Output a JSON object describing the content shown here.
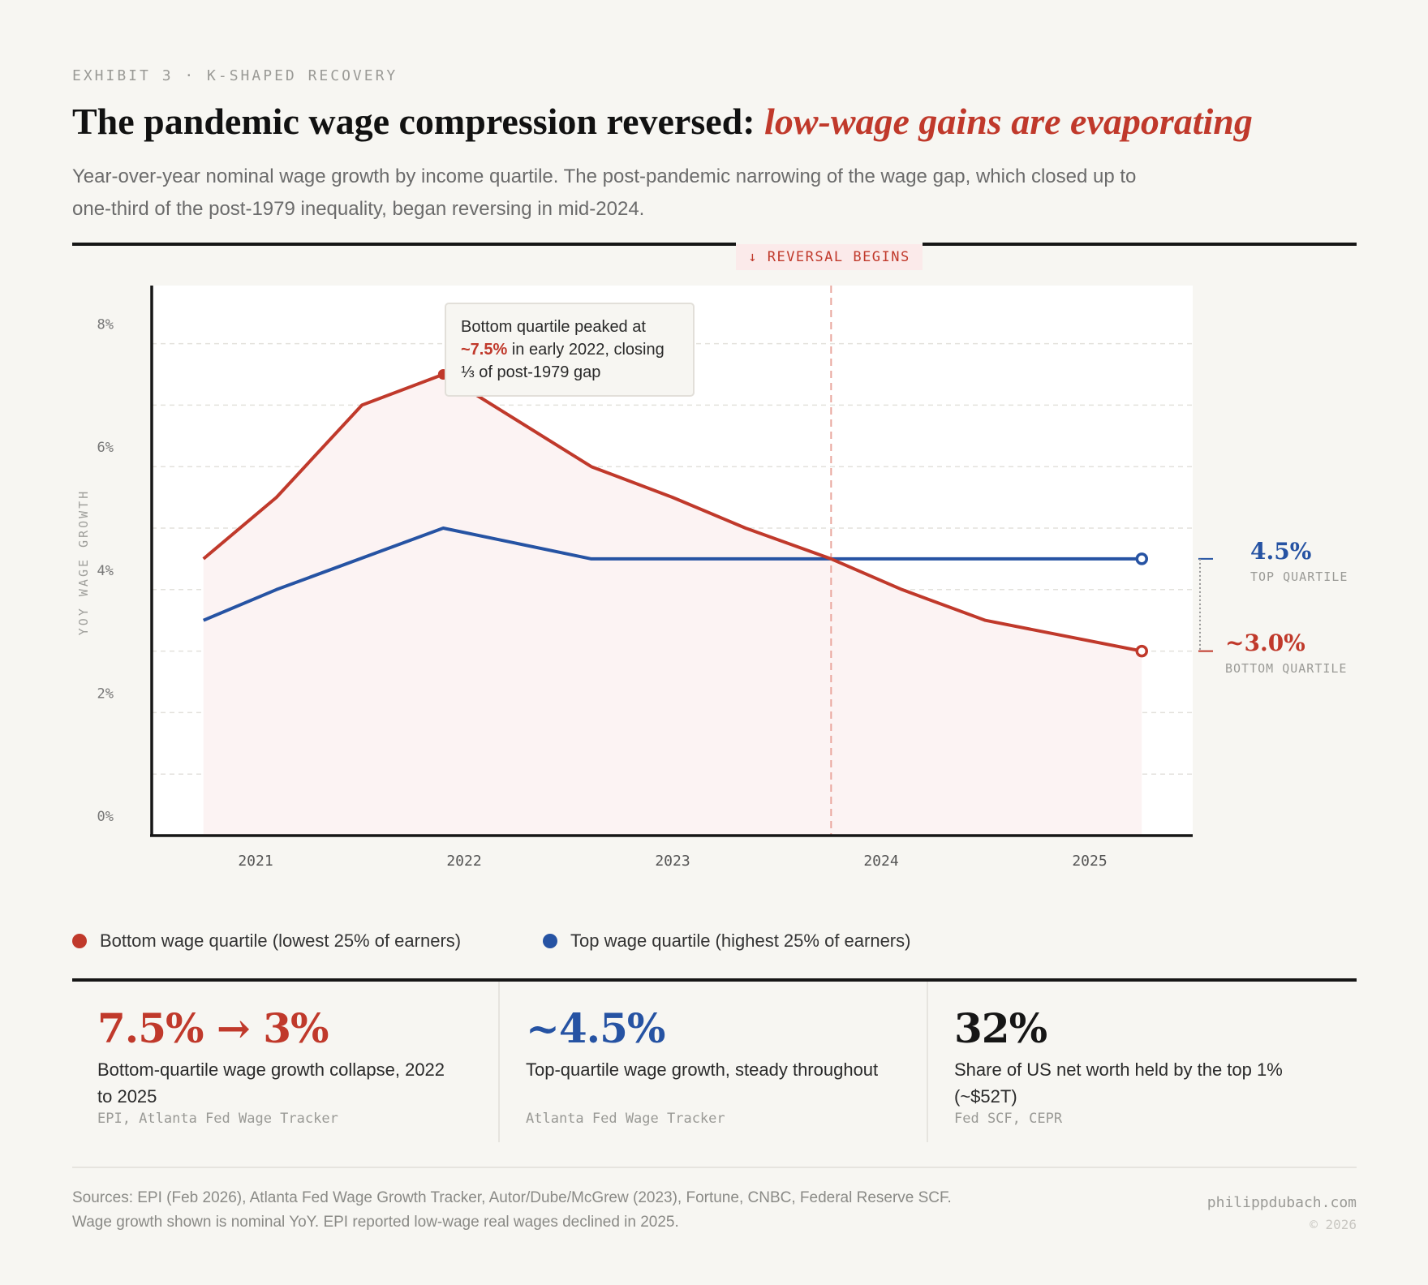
{
  "header": {
    "kicker": "EXHIBIT 3 · K-SHAPED RECOVERY",
    "title_main": "The pandemic wage compression reversed: ",
    "title_highlight": "low-wage gains are evaporating",
    "subtitle": "Year-over-year nominal wage growth by income quartile. The post-pandemic narrowing of the wage gap, which closed up to one-third of the post-1979 inequality, began reversing in mid-2024."
  },
  "chart_data": {
    "type": "line",
    "ylabel": "YOY WAGE GROWTH",
    "ylim": [
      0,
      8.9
    ],
    "xlim": [
      2020.5,
      2025.6
    ],
    "x_ticks": [
      2021,
      2022,
      2023,
      2024,
      2025
    ],
    "x_tick_labels": [
      "2021",
      "2022",
      "2023",
      "2024",
      "2025"
    ],
    "y_ticks": [
      0,
      2,
      4,
      6,
      8
    ],
    "y_tick_labels": [
      "0%",
      "2%",
      "4%",
      "6%",
      "8%"
    ],
    "grid": true,
    "legend_placement": "bottom",
    "series": [
      {
        "name": "Bottom wage quartile (lowest 25% of earners)",
        "color": "#c0392b",
        "filled": true,
        "x": [
          2020.75,
          2021.1,
          2021.51,
          2021.9,
          2022.61,
          2023.0,
          2023.35,
          2023.76,
          2024.1,
          2024.5,
          2025.25
        ],
        "y": [
          4.5,
          5.5,
          7.0,
          7.5,
          6.0,
          5.5,
          5.0,
          4.5,
          4.0,
          3.5,
          3.0
        ]
      },
      {
        "name": "Top wage quartile (highest 25% of earners)",
        "color": "#2653a3",
        "x": [
          2020.75,
          2021.1,
          2021.9,
          2022.61,
          2023.76,
          2025.25
        ],
        "y": [
          3.5,
          4.0,
          5.0,
          4.5,
          4.5,
          4.5
        ]
      }
    ],
    "annotations": {
      "reversal": {
        "x": 2023.76,
        "label": "↓ REVERSAL BEGINS"
      },
      "peak": {
        "x": 2021.9,
        "y": 7.5
      },
      "tooltip_pre": "Bottom quartile peaked at ",
      "tooltip_highlight": "~7.5%",
      "tooltip_post": " in early 2022, closing ⅓ of post-1979 gap",
      "top_end_value": "4.5%",
      "top_end_label": "TOP QUARTILE",
      "bottom_end_value": "~3.0%",
      "bottom_end_label": "BOTTOM QUARTILE"
    }
  },
  "legend": [
    {
      "label": "Bottom wage quartile (lowest 25% of earners)",
      "color": "#c0392b"
    },
    {
      "label": "Top wage quartile (highest 25% of earners)",
      "color": "#2653a3"
    }
  ],
  "stats": [
    {
      "value": "7.5% → 3%",
      "desc": "Bottom-quartile wage growth collapse, 2022 to 2025",
      "source": "EPI, Atlanta Fed Wage Tracker",
      "color": "#c0392b"
    },
    {
      "value": "~4.5%",
      "desc": "Top-quartile wage growth, steady throughout",
      "source": "Atlanta Fed Wage Tracker",
      "color": "#2653a3"
    },
    {
      "value": "32%",
      "desc": "Share of US net worth held by the top 1% (~$52T)",
      "source": "Fed SCF, CEPR",
      "color": "#161616"
    }
  ],
  "footer": {
    "sources": "Sources: EPI (Feb 2026), Atlanta Fed Wage Growth Tracker, Autor/Dube/McGrew (2023), Fortune, CNBC, Federal Reserve SCF. Wage growth shown is nominal YoY. EPI reported low-wage real wages declined in 2025.",
    "site": "philippdubach.com",
    "copyright": "© 2026"
  }
}
